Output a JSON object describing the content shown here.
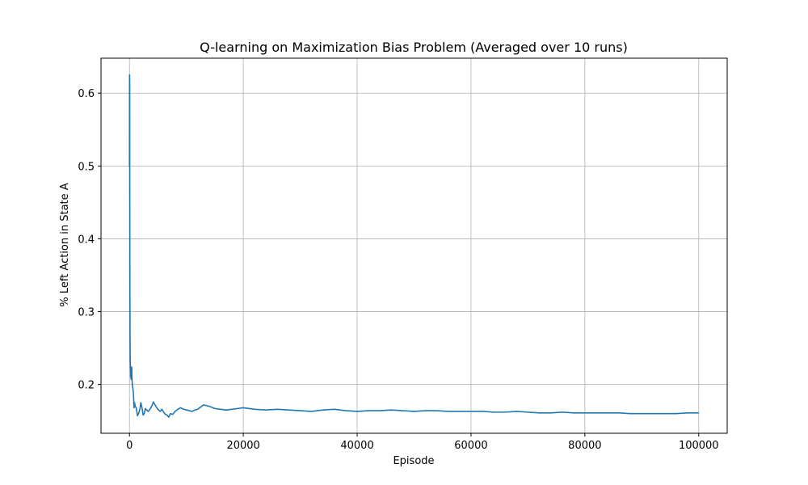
{
  "chart_data": {
    "type": "line",
    "title": "Q-learning on Maximization Bias Problem (Averaged over 10 runs)",
    "xlabel": "Episode",
    "ylabel": "% Left Action in State A",
    "xlim": [
      -5000,
      105000
    ],
    "ylim": [
      0.133,
      0.648
    ],
    "xticks": [
      0,
      20000,
      40000,
      60000,
      80000,
      100000
    ],
    "yticks": [
      0.2,
      0.3,
      0.4,
      0.5,
      0.6
    ],
    "xtick_labels": [
      "0",
      "20000",
      "40000",
      "60000",
      "80000",
      "100000"
    ],
    "ytick_labels": [
      "0.2",
      "0.3",
      "0.4",
      "0.5",
      "0.6"
    ],
    "grid": true,
    "line_color": "#1f77b4",
    "series": [
      {
        "x": [
          0,
          10,
          20,
          30,
          40,
          50,
          60,
          80,
          100,
          120,
          150,
          180,
          200,
          250,
          300,
          350,
          400,
          450,
          500,
          600,
          700,
          800,
          900,
          1000,
          1200,
          1400,
          1600,
          1800,
          2000,
          2200,
          2400,
          2600,
          2800,
          3000,
          3300,
          3600,
          3900,
          4200,
          4500,
          4800,
          5100,
          5400,
          5700,
          6000,
          6300,
          6600,
          6900,
          7200,
          7600,
          8000,
          8500,
          9000,
          9500,
          10000,
          10500,
          11000,
          11500,
          12000,
          12500,
          13000,
          13500,
          14000,
          15000,
          16000,
          17000,
          18000,
          19000,
          20000,
          22000,
          24000,
          26000,
          28000,
          30000,
          32000,
          34000,
          36000,
          38000,
          40000,
          42000,
          44000,
          46000,
          48000,
          50000,
          52000,
          54000,
          56000,
          58000,
          60000,
          62000,
          64000,
          66000,
          68000,
          70000,
          72000,
          74000,
          76000,
          78000,
          80000,
          82000,
          84000,
          86000,
          88000,
          90000,
          92000,
          94000,
          96000,
          98000,
          100000
        ],
        "values": [
          0.5,
          0.6,
          0.625,
          0.58,
          0.62,
          0.5,
          0.45,
          0.32,
          0.27,
          0.24,
          0.23,
          0.22,
          0.21,
          0.213,
          0.207,
          0.208,
          0.224,
          0.206,
          0.2,
          0.195,
          0.187,
          0.168,
          0.175,
          0.17,
          0.168,
          0.157,
          0.16,
          0.165,
          0.175,
          0.168,
          0.158,
          0.16,
          0.167,
          0.165,
          0.163,
          0.166,
          0.17,
          0.176,
          0.172,
          0.168,
          0.165,
          0.163,
          0.166,
          0.162,
          0.159,
          0.158,
          0.155,
          0.16,
          0.159,
          0.163,
          0.166,
          0.168,
          0.166,
          0.165,
          0.164,
          0.163,
          0.165,
          0.166,
          0.169,
          0.172,
          0.171,
          0.17,
          0.167,
          0.166,
          0.165,
          0.166,
          0.167,
          0.168,
          0.166,
          0.165,
          0.166,
          0.165,
          0.164,
          0.163,
          0.165,
          0.166,
          0.164,
          0.163,
          0.164,
          0.164,
          0.165,
          0.164,
          0.163,
          0.164,
          0.164,
          0.163,
          0.163,
          0.163,
          0.163,
          0.162,
          0.162,
          0.163,
          0.162,
          0.161,
          0.161,
          0.162,
          0.161,
          0.161,
          0.161,
          0.161,
          0.161,
          0.16,
          0.16,
          0.16,
          0.16,
          0.16,
          0.161,
          0.161
        ]
      }
    ]
  }
}
